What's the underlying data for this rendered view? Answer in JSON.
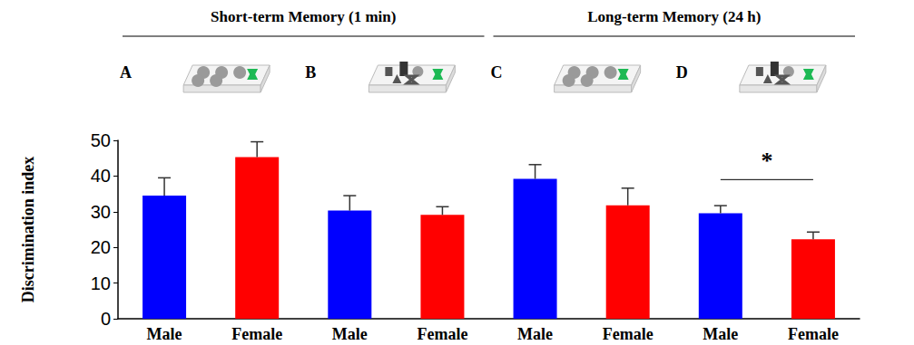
{
  "chart_data": {
    "type": "bar",
    "y_label": "Discrimination index",
    "categories": [
      "Male",
      "Female",
      "Male",
      "Female",
      "Male",
      "Female",
      "Male",
      "Female"
    ],
    "values": [
      34.5,
      45.3,
      30.3,
      29.1,
      39.2,
      31.8,
      29.6,
      22.3
    ],
    "errors": [
      5.0,
      4.3,
      4.2,
      2.3,
      4.0,
      4.8,
      2.1,
      2.0
    ],
    "colors": [
      "#0000ff",
      "#ff0000",
      "#0000ff",
      "#ff0000",
      "#0000ff",
      "#ff0000",
      "#0000ff",
      "#ff0000"
    ],
    "ylim": [
      0,
      50
    ],
    "yticks": [
      0,
      10,
      20,
      30,
      40,
      50
    ],
    "grid": false,
    "group_titles": [
      {
        "text": "Short-term Memory (1 min)",
        "categories": [
          0,
          3
        ]
      },
      {
        "text": "Long-term Memory (24 h)",
        "categories": [
          4,
          7
        ]
      }
    ],
    "panels": [
      {
        "label": "A",
        "categories": [
          0,
          1
        ]
      },
      {
        "label": "B",
        "categories": [
          2,
          3
        ]
      },
      {
        "label": "C",
        "categories": [
          4,
          5
        ]
      },
      {
        "label": "D",
        "categories": [
          6,
          7
        ]
      }
    ],
    "significance": [
      {
        "label": "*",
        "categories": [
          6,
          7
        ],
        "y": 39
      }
    ]
  }
}
